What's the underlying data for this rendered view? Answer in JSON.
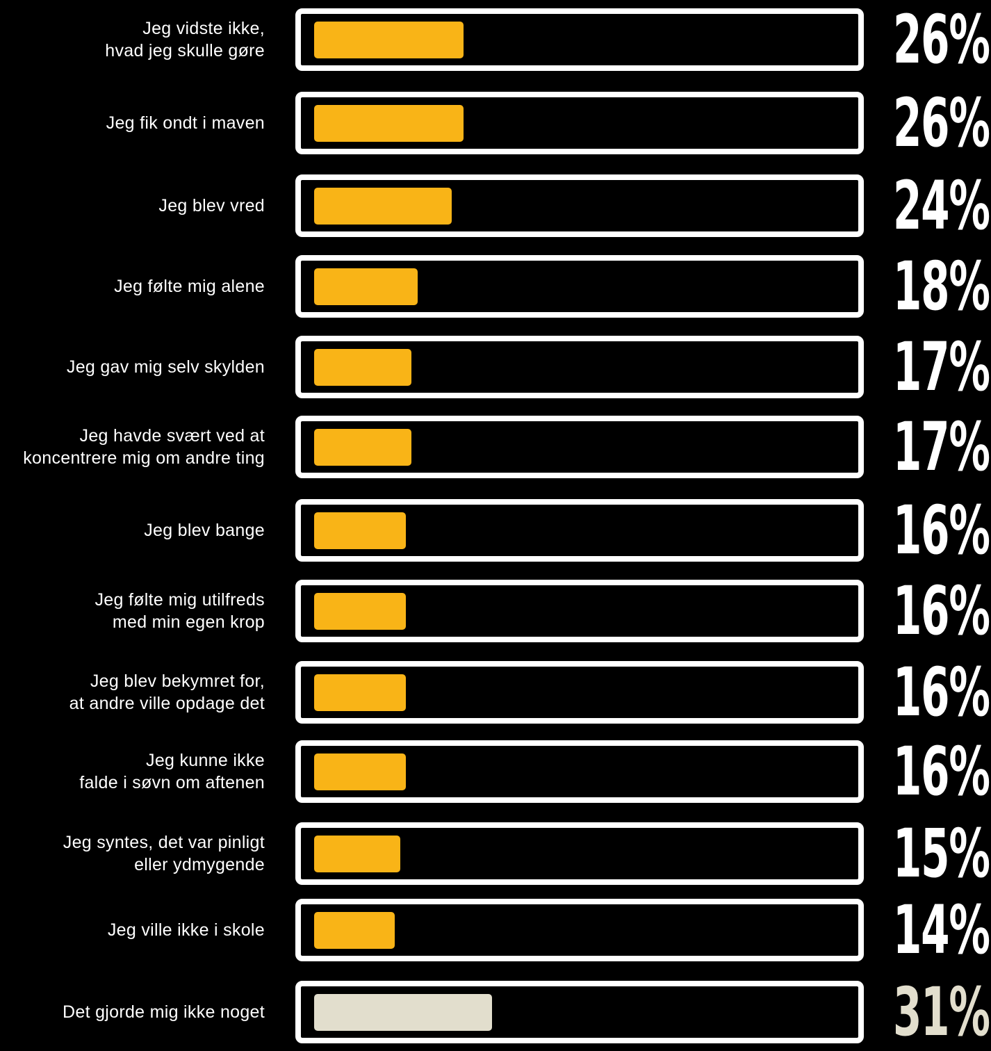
{
  "chart_data": {
    "type": "bar",
    "orientation": "horizontal",
    "value_unit": "%",
    "xlim": [
      0,
      100
    ],
    "colors": {
      "bar": "#F9B417",
      "highlight_bar": "#E2DECD",
      "frame": "#FFFFFF",
      "background": "#000000",
      "label_text": "#FFFFFF",
      "value_text": "#FFFFFF",
      "highlight_value_text": "#E2DECD"
    },
    "categories": [
      "Jeg vidste ikke,\nhvad jeg skulle gøre",
      "Jeg fik ondt i maven",
      "Jeg blev vred",
      "Jeg følte mig alene",
      "Jeg gav mig selv skylden",
      "Jeg havde svært ved at\nkoncentrere mig om andre ting",
      "Jeg blev bange",
      "Jeg følte mig utilfreds\nmed min egen krop",
      "Jeg blev bekymret for,\nat andre ville opdage det",
      "Jeg kunne ikke\nfalde i søvn om aftenen",
      "Jeg syntes, det var pinligt\neller ydmygende",
      "Jeg ville ikke i skole",
      "Det gjorde mig ikke noget"
    ],
    "values": [
      26,
      26,
      24,
      18,
      17,
      17,
      16,
      16,
      16,
      16,
      15,
      14,
      31
    ],
    "value_labels": [
      "26%",
      "26%",
      "24%",
      "18%",
      "17%",
      "17%",
      "16%",
      "16%",
      "16%",
      "16%",
      "15%",
      "14%",
      "31%"
    ],
    "highlighted": [
      false,
      false,
      false,
      false,
      false,
      false,
      false,
      false,
      false,
      false,
      false,
      false,
      true
    ]
  }
}
